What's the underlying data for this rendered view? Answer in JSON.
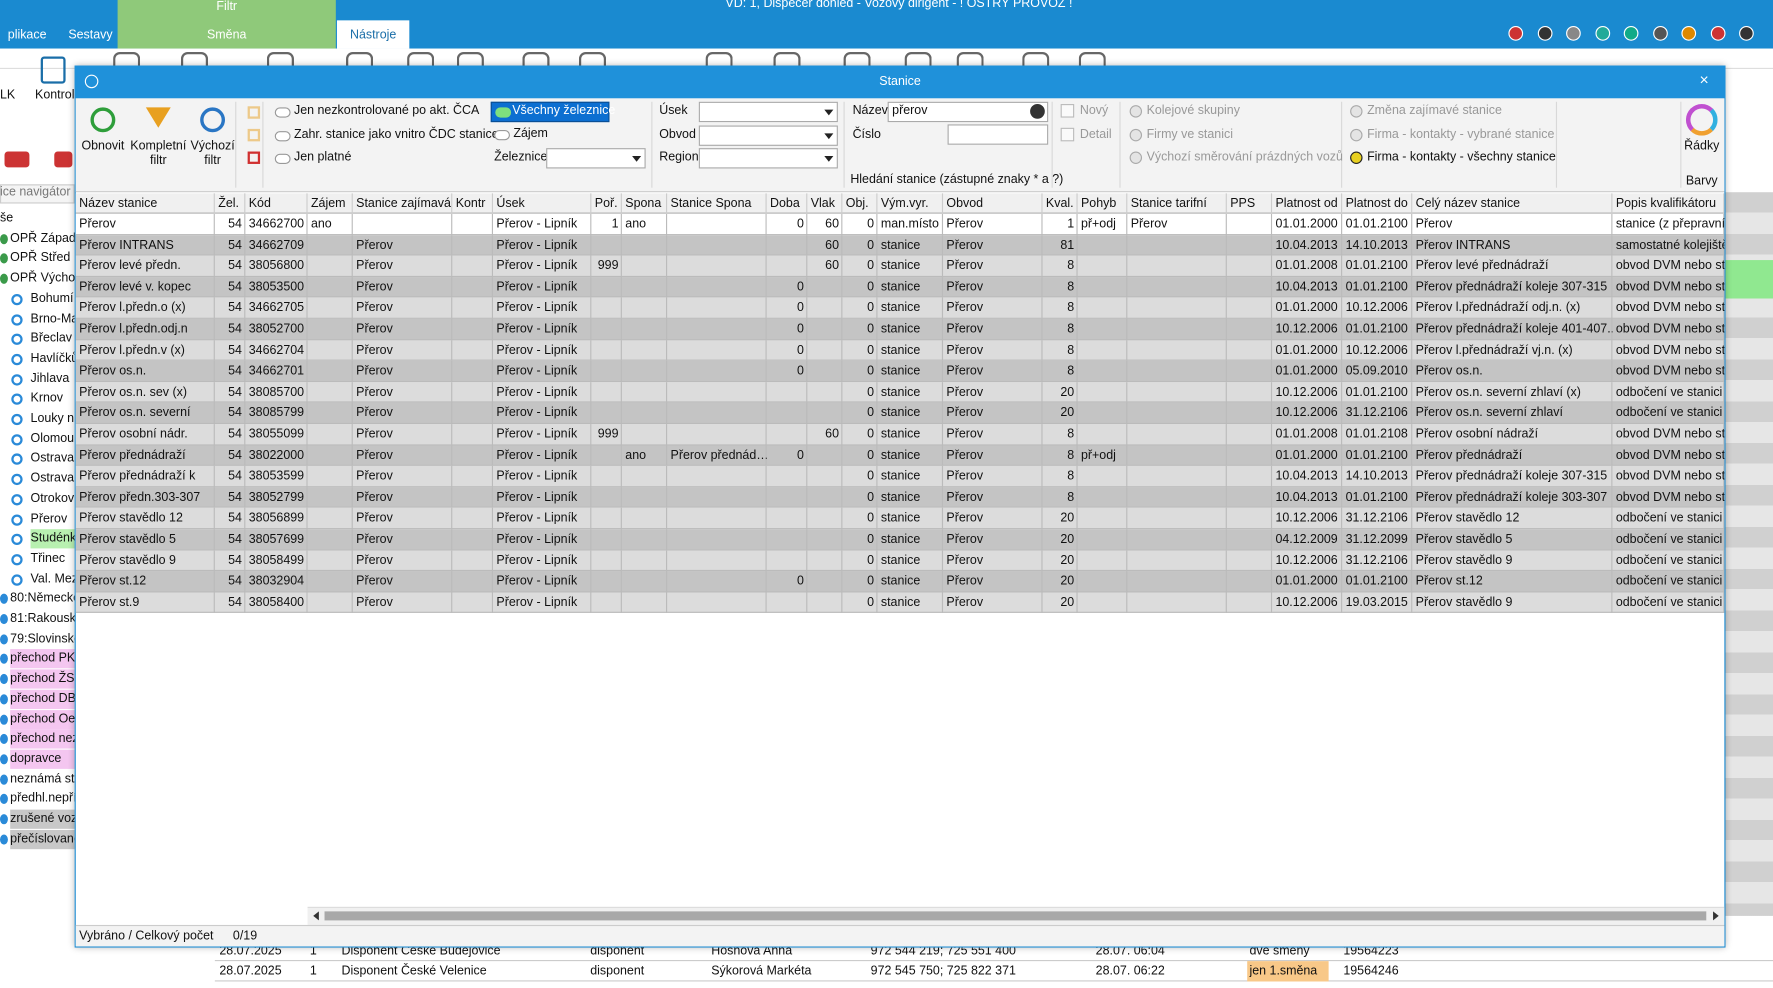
{
  "app": {
    "title": "VD: 1, Dispečer dohled - Vozový dirigent - ! OSTRÝ PROVOZ !",
    "tabs": [
      "plikace",
      "Sestavy",
      "Filtr",
      "Směna",
      "Nástroje"
    ],
    "left_labels": [
      "LK",
      "Kontrol"
    ],
    "navigator": {
      "header": "ice navigátor",
      "items": [
        "še",
        "OPŘ Západ",
        "OPŘ Střed",
        "OPŘ Východ",
        "Bohumí",
        "Brno-Ma",
        "Břeclav",
        "Havlíčků",
        "Jihlava",
        "Krnov",
        "Louky na",
        "Olomou",
        "Ostrava",
        "Ostrava-",
        "Otrokov",
        "Přerov",
        "Studénk",
        "Třinec",
        "Val. Mez",
        "80:Německo",
        "81:Rakousko",
        "79:Slovinsko",
        "přechod PKI",
        "přechod ŽSI",
        "přechod DB",
        "přechod Oe",
        "přechod nez",
        "dopravce",
        "neznámá sta",
        "předhl.nepří",
        "zrušené voz",
        "přečíslované"
      ]
    },
    "background_rows": [
      [
        "28.07.2025",
        "1",
        "Disponent České Budějovice",
        "disponent",
        "Hošňová Anna",
        "972 544 219; 725 551 400",
        "28.07. 06:04",
        "dvě směny",
        "19564223"
      ],
      [
        "28.07.2025",
        "1",
        "Disponent České Velenice",
        "disponent",
        "Sýkorová Markéta",
        "972 545 750; 725 822 371",
        "28.07. 06:22",
        "jen 1.směna",
        "19564246"
      ]
    ]
  },
  "dialog": {
    "title": "Stanice",
    "buttons": [
      "Obnovit",
      "Kompletní filtr",
      "Výchozí filtr"
    ],
    "options": [
      "Jen nezkontrolované po akt. ČCA",
      "Zahr. stanice jako vnitro ČDC stanice",
      "Jen platné"
    ],
    "railway_options": [
      "Všechny železnice",
      "Zájem"
    ],
    "railway_label": "Železnice",
    "selectors": [
      "Úsek",
      "Obvod",
      "Region"
    ],
    "search": {
      "name_label": "Název",
      "name_value": "přerov",
      "number_label": "Číslo",
      "hint": "Hledání stanice (zástupné znaky * a ?)"
    },
    "checkboxes": [
      "Nový",
      "Detail"
    ],
    "links": [
      "Kolejové skupiny",
      "Firmy ve stanici",
      "Výchozí směrování prázdných vozů"
    ],
    "contacts": [
      "Změna zajímavé stanice",
      "Firma - kontakty - vybrané stanice",
      "Firma - kontakty - všechny stanice"
    ],
    "rows_button": "Řádky",
    "colors_label": "Barvy",
    "table": {
      "columns": [
        "Název stanice",
        "Žel.",
        "Kód",
        "Zájem",
        "Stanice zajímavá",
        "Kontr",
        "Úsek",
        "Poř.",
        "Spona",
        "Stanice Spona",
        "Doba",
        "Vlak",
        "Obj.",
        "Vým.vyr.",
        "Obvod",
        "Kval.",
        "Pohyb",
        "Stanice tarifní",
        "PPS",
        "Platnost od",
        "Platnost do",
        "Celý název stanice",
        "Popis kvalifikátoru"
      ],
      "rows": [
        [
          "Přerov",
          54,
          34662700,
          "ano",
          null,
          null,
          "Přerov - Lipník",
          1,
          "ano",
          null,
          0,
          60,
          0,
          "man.místo",
          "Přerov",
          1,
          "př+odj",
          "Přerov",
          null,
          "01.01.2000",
          "01.01.2100",
          "Přerov",
          "stanice (z přepravníh"
        ],
        [
          "Přerov INTRANS",
          54,
          34662709,
          null,
          "Přerov",
          null,
          "Přerov - Lipník",
          null,
          null,
          null,
          null,
          60,
          0,
          "stanice",
          "Přerov",
          81,
          null,
          null,
          null,
          "10.04.2013",
          "14.10.2013",
          "Přerov INTRANS",
          "samostatné kolejiště"
        ],
        [
          "Přerov levé předn.",
          54,
          38056800,
          null,
          "Přerov",
          null,
          "Přerov - Lipník",
          999,
          null,
          null,
          null,
          60,
          0,
          "stanice",
          "Přerov",
          8,
          null,
          null,
          null,
          "01.01.2008",
          "01.01.2100",
          "Přerov levé přednádraží",
          "obvod DVM nebo sta"
        ],
        [
          "Přerov levé v. kopec",
          54,
          38053500,
          null,
          "Přerov",
          null,
          "Přerov - Lipník",
          null,
          null,
          null,
          0,
          null,
          0,
          "stanice",
          "Přerov",
          8,
          null,
          null,
          null,
          "10.04.2013",
          "01.01.2100",
          "Přerov přednádraží koleje 307-315",
          "obvod DVM nebo sta"
        ],
        [
          "Přerov l.předn.o (x)",
          54,
          34662705,
          null,
          "Přerov",
          null,
          "Přerov - Lipník",
          null,
          null,
          null,
          0,
          null,
          0,
          "stanice",
          "Přerov",
          8,
          null,
          null,
          null,
          "01.01.2000",
          "10.12.2006",
          "Přerov l.přednádraží odj.n. (x)",
          "obvod DVM nebo sta"
        ],
        [
          "Přerov l.předn.odj.n",
          54,
          38052700,
          null,
          "Přerov",
          null,
          "Přerov - Lipník",
          null,
          null,
          null,
          0,
          null,
          0,
          "stanice",
          "Přerov",
          8,
          null,
          null,
          null,
          "10.12.2006",
          "01.01.2100",
          "Přerov přednádraží koleje 401-407...",
          "obvod DVM nebo sta"
        ],
        [
          "Přerov l.předn.v (x)",
          54,
          34662704,
          null,
          "Přerov",
          null,
          "Přerov - Lipník",
          null,
          null,
          null,
          0,
          null,
          0,
          "stanice",
          "Přerov",
          8,
          null,
          null,
          null,
          "01.01.2000",
          "10.12.2006",
          "Přerov l.přednádraží vj.n. (x)",
          "obvod DVM nebo sta"
        ],
        [
          "Přerov os.n.",
          54,
          34662701,
          null,
          "Přerov",
          null,
          "Přerov - Lipník",
          null,
          null,
          null,
          0,
          null,
          0,
          "stanice",
          "Přerov",
          8,
          null,
          null,
          null,
          "01.01.2000",
          "05.09.2010",
          "Přerov os.n.",
          "obvod DVM nebo sta"
        ],
        [
          "Přerov os.n. sev (x)",
          54,
          38085700,
          null,
          "Přerov",
          null,
          "Přerov - Lipník",
          null,
          null,
          null,
          null,
          null,
          0,
          "stanice",
          "Přerov",
          20,
          null,
          null,
          null,
          "10.12.2006",
          "01.01.2100",
          "Přerov os.n. severní zhlaví (x)",
          "odbočení ve stanici r"
        ],
        [
          "Přerov os.n. severní",
          54,
          38085799,
          null,
          "Přerov",
          null,
          "Přerov - Lipník",
          null,
          null,
          null,
          null,
          null,
          0,
          "stanice",
          "Přerov",
          20,
          null,
          null,
          null,
          "10.12.2006",
          "31.12.2106",
          "Přerov os.n. severní zhlaví",
          "odbočení ve stanici r"
        ],
        [
          "Přerov osobní nádr.",
          54,
          38055099,
          null,
          "Přerov",
          null,
          "Přerov - Lipník",
          999,
          null,
          null,
          null,
          60,
          0,
          "stanice",
          "Přerov",
          8,
          null,
          null,
          null,
          "01.01.2008",
          "01.01.2108",
          "Přerov osobní nádraží",
          "obvod DVM nebo sta"
        ],
        [
          "Přerov přednádraží",
          54,
          38022000,
          null,
          "Přerov",
          null,
          "Přerov - Lipník",
          null,
          "ano",
          "Přerov přednád…",
          0,
          null,
          0,
          "stanice",
          "Přerov",
          8,
          "př+odj",
          null,
          null,
          "01.01.2000",
          "01.01.2100",
          "Přerov přednádraží",
          "obvod DVM nebo sta"
        ],
        [
          "Přerov přednádraží k",
          54,
          38053599,
          null,
          "Přerov",
          null,
          "Přerov - Lipník",
          null,
          null,
          null,
          null,
          null,
          0,
          "stanice",
          "Přerov",
          8,
          null,
          null,
          null,
          "10.04.2013",
          "14.10.2013",
          "Přerov přednádraží koleje 307-315",
          "obvod DVM nebo sta"
        ],
        [
          "Přerov předn.303-307",
          54,
          38052799,
          null,
          "Přerov",
          null,
          "Přerov - Lipník",
          null,
          null,
          null,
          null,
          null,
          0,
          "stanice",
          "Přerov",
          8,
          null,
          null,
          null,
          "10.04.2013",
          "01.01.2100",
          "Přerov přednádraží koleje 303-307",
          "obvod DVM nebo sta"
        ],
        [
          "Přerov stavědlo 12",
          54,
          38056899,
          null,
          "Přerov",
          null,
          "Přerov - Lipník",
          null,
          null,
          null,
          null,
          null,
          0,
          "stanice",
          "Přerov",
          20,
          null,
          null,
          null,
          "10.12.2006",
          "31.12.2106",
          "Přerov stavědlo 12",
          "odbočení ve stanici r"
        ],
        [
          "Přerov stavědlo 5",
          54,
          38057699,
          null,
          "Přerov",
          null,
          "Přerov - Lipník",
          null,
          null,
          null,
          null,
          null,
          0,
          "stanice",
          "Přerov",
          20,
          null,
          null,
          null,
          "04.12.2009",
          "31.12.2099",
          "Přerov stavědlo 5",
          "odbočení ve stanici r"
        ],
        [
          "Přerov stavědlo 9",
          54,
          38058499,
          null,
          "Přerov",
          null,
          "Přerov - Lipník",
          null,
          null,
          null,
          null,
          null,
          0,
          "stanice",
          "Přerov",
          20,
          null,
          null,
          null,
          "10.12.2006",
          "31.12.2106",
          "Přerov stavědlo 9",
          "odbočení ve stanici r"
        ],
        [
          "Přerov st.12",
          54,
          38032904,
          null,
          "Přerov",
          null,
          "Přerov - Lipník",
          null,
          null,
          null,
          0,
          null,
          0,
          "stanice",
          "Přerov",
          20,
          null,
          null,
          null,
          "01.01.2000",
          "01.01.2100",
          "Přerov st.12",
          "odbočení ve stanici r"
        ],
        [
          "Přerov st.9",
          54,
          38058400,
          null,
          "Přerov",
          null,
          "Přerov - Lipník",
          null,
          null,
          null,
          null,
          null,
          0,
          "stanice",
          "Přerov",
          20,
          null,
          null,
          null,
          "10.12.2006",
          "19.03.2015",
          "Přerov stavědlo 9",
          "odbočení ve stanici r"
        ]
      ]
    },
    "status": {
      "label": "Vybráno / Celkový počet",
      "count": "0/19"
    }
  }
}
